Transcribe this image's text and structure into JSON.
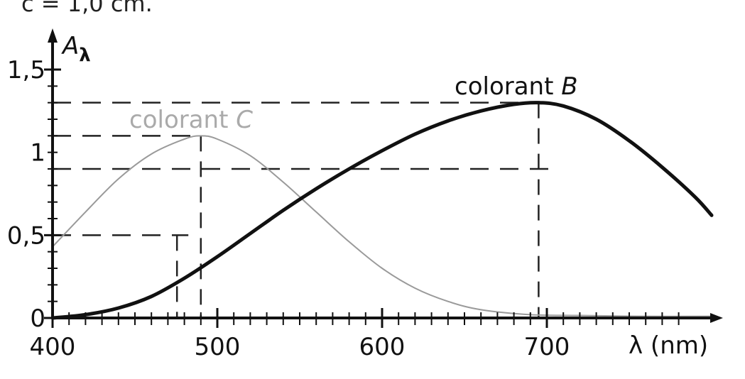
{
  "top_text": "c = 1,0 cm.",
  "chart_data": {
    "type": "line",
    "title": "",
    "xlabel": "λ (nm)",
    "ylabel": "Aλ",
    "xlim": [
      400,
      800
    ],
    "ylim": [
      0,
      1.5
    ],
    "x_ticks": [
      400,
      500,
      600,
      700
    ],
    "x_tick_labels": [
      "400",
      "500",
      "600",
      "700"
    ],
    "y_ticks": [
      0,
      0.5,
      1,
      1.5
    ],
    "y_tick_labels": [
      "0",
      "0,5",
      "1",
      "1,5"
    ],
    "grid": false,
    "series": [
      {
        "name": "colorant C",
        "color": "#9a9a9a",
        "points": [
          [
            400,
            0.43
          ],
          [
            420,
            0.64
          ],
          [
            440,
            0.84
          ],
          [
            460,
            0.99
          ],
          [
            480,
            1.08
          ],
          [
            490,
            1.1
          ],
          [
            500,
            1.08
          ],
          [
            520,
            0.98
          ],
          [
            540,
            0.82
          ],
          [
            560,
            0.64
          ],
          [
            580,
            0.46
          ],
          [
            600,
            0.3
          ],
          [
            620,
            0.18
          ],
          [
            640,
            0.1
          ],
          [
            660,
            0.05
          ],
          [
            690,
            0.02
          ],
          [
            720,
            0.015
          ],
          [
            760,
            0.01
          ],
          [
            800,
            0.01
          ]
        ]
      },
      {
        "name": "colorant B",
        "color": "#111111",
        "points": [
          [
            400,
            0
          ],
          [
            420,
            0.02
          ],
          [
            440,
            0.06
          ],
          [
            460,
            0.13
          ],
          [
            480,
            0.24
          ],
          [
            500,
            0.37
          ],
          [
            520,
            0.51
          ],
          [
            540,
            0.65
          ],
          [
            560,
            0.78
          ],
          [
            580,
            0.9
          ],
          [
            600,
            1.01
          ],
          [
            620,
            1.11
          ],
          [
            640,
            1.19
          ],
          [
            660,
            1.25
          ],
          [
            680,
            1.29
          ],
          [
            695,
            1.3
          ],
          [
            710,
            1.28
          ],
          [
            730,
            1.2
          ],
          [
            750,
            1.07
          ],
          [
            770,
            0.91
          ],
          [
            790,
            0.73
          ],
          [
            800,
            0.62
          ]
        ]
      }
    ],
    "reference_lines": [
      {
        "y": 1.3,
        "x": 695
      },
      {
        "y": 1.1,
        "x": 490
      },
      {
        "y": 0.9,
        "x": 695
      },
      {
        "y": 0.5,
        "x": 485
      }
    ]
  }
}
